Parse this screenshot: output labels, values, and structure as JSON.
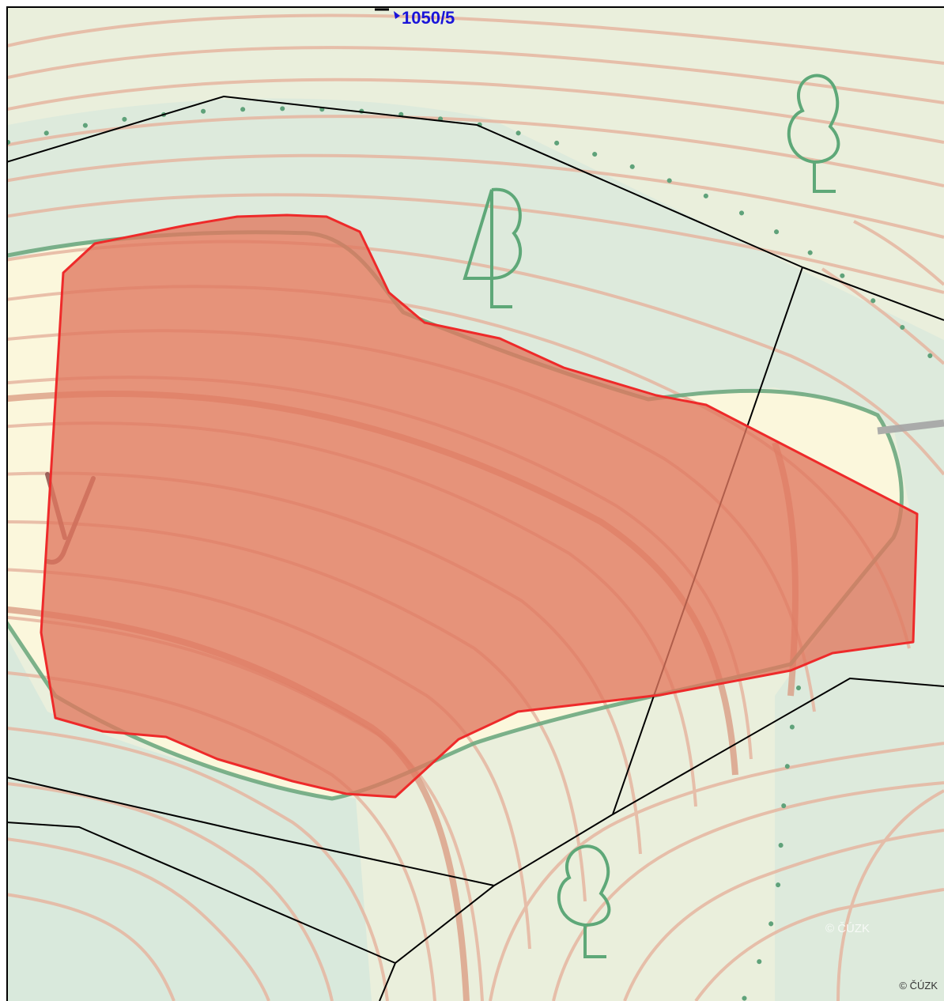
{
  "map": {
    "parcel_label": "1050/5",
    "watermark": "© ČÚZK",
    "copyright": "© ČÚZK",
    "colors": {
      "background": "#eaefdc",
      "forest_tint": "#dceadd",
      "meadow_light": "#fbf9dd",
      "contour": "#e7b9a4",
      "contour_index": "#d99c86",
      "boundary_line": "#000000",
      "vegetation_line": "#6da780",
      "tree_symbol": "#5ea878",
      "selection_fill": "#e0775f",
      "selection_stroke": "#ee2a2a",
      "parcel_label": "#1a14d9",
      "path_line": "#9e9e9e"
    },
    "symbols": [
      "deciduous-tree-icon",
      "deciduous-tree-icon",
      "mixed-forest-tree-icon"
    ]
  }
}
